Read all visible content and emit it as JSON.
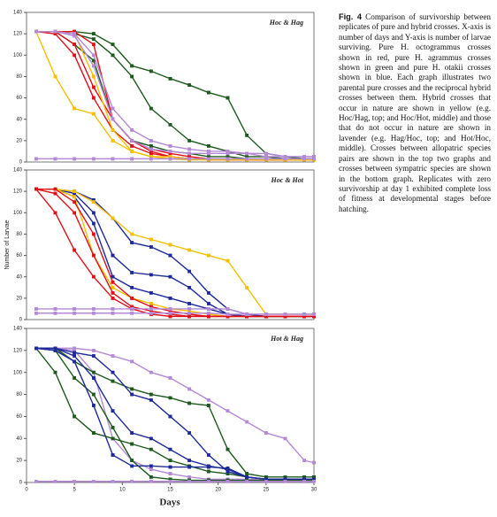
{
  "xlabel": "Days",
  "caption": {
    "label": "Fig. 4",
    "text": "Comparison of survivorship between replicates of pure and hybrid crosses. X-axis is number of days and Y-axis is number of larvae surviving. Pure H. octogrammus crosses shown in red, pure H. agrammus crosses shown in green and pure H. otakii crosses shown in blue. Each graph illustrates two parental pure crosses and the reciprocal hybrid crosses between them. Hybrid crosses that occur in nature are shown in yellow (e.g. Hoc/Hag, top; and Hoc/Hot, middle) and those that do not occur in nature are shown in lavender (e.g. Hag/Hoc, top; and Hot/Hoc, middle). Crosses between allopatric species pairs are shown in the top two graphs and crosses between sympatric species are shown in the bottom graph. Replicates with zero survivorship at day 1 exhibited complete loss of fitness at developmental stages before hatching."
  },
  "chart_data": [
    {
      "type": "line",
      "title": "Hoc & Hag",
      "xlim": [
        0,
        30
      ],
      "ylim": [
        0,
        140
      ],
      "yticks": [
        0,
        20,
        40,
        60,
        80,
        100,
        120,
        140
      ],
      "x": [
        1,
        3,
        5,
        7,
        9,
        11,
        13,
        15,
        17,
        19,
        21,
        23,
        25,
        27,
        29,
        30
      ],
      "series": [
        {
          "color": "#1e5a1e",
          "values": [
            122,
            122,
            122,
            120,
            110,
            90,
            85,
            78,
            72,
            65,
            60,
            25,
            8,
            5,
            3,
            3
          ]
        },
        {
          "color": "#1e5a1e",
          "values": [
            122,
            122,
            120,
            115,
            100,
            80,
            50,
            35,
            20,
            15,
            10,
            5,
            5,
            3,
            3,
            3
          ]
        },
        {
          "color": "#1e5a1e",
          "values": [
            122,
            122,
            110,
            95,
            40,
            20,
            15,
            10,
            8,
            5,
            5,
            3,
            3,
            3,
            2,
            2
          ]
        },
        {
          "color": "#e0101a",
          "values": [
            122,
            122,
            110,
            70,
            40,
            20,
            12,
            8,
            5,
            3,
            3,
            2,
            2,
            2,
            2,
            2
          ]
        },
        {
          "color": "#e0101a",
          "values": [
            122,
            120,
            100,
            60,
            30,
            15,
            8,
            5,
            3,
            3,
            2,
            2,
            2,
            2,
            2,
            2
          ]
        },
        {
          "color": "#e0101a",
          "values": [
            122,
            122,
            122,
            110,
            40,
            20,
            10,
            5,
            3,
            2,
            2,
            2,
            2,
            2,
            2,
            2
          ]
        },
        {
          "color": "#f5c000",
          "values": [
            122,
            80,
            50,
            45,
            20,
            10,
            5,
            3,
            2,
            2,
            2,
            2,
            2,
            2,
            2,
            2
          ]
        },
        {
          "color": "#f5c000",
          "values": [
            122,
            122,
            120,
            80,
            30,
            10,
            5,
            5,
            3,
            3,
            3,
            3,
            3,
            2,
            2,
            2
          ]
        },
        {
          "color": "#b48ad8",
          "values": [
            122,
            122,
            120,
            100,
            50,
            30,
            20,
            15,
            12,
            10,
            10,
            8,
            8,
            5,
            5,
            5
          ]
        },
        {
          "color": "#b48ad8",
          "values": [
            122,
            122,
            118,
            90,
            40,
            20,
            12,
            10,
            8,
            8,
            8,
            8,
            5,
            5,
            5,
            5
          ]
        },
        {
          "color": "#b48ad8",
          "values": [
            3,
            3,
            3,
            3,
            3,
            3,
            3,
            3,
            3,
            3,
            3,
            3,
            3,
            3,
            3,
            3
          ]
        }
      ]
    },
    {
      "type": "line",
      "title": "Hoc & Hot",
      "ylabel": "Number of Larvae",
      "xlim": [
        0,
        30
      ],
      "ylim": [
        0,
        140
      ],
      "yticks": [
        0,
        20,
        40,
        60,
        80,
        100,
        120,
        140
      ],
      "x": [
        1,
        3,
        5,
        7,
        9,
        11,
        13,
        15,
        17,
        19,
        21,
        23,
        25,
        27,
        29,
        30
      ],
      "series": [
        {
          "color": "#1e2a9a",
          "values": [
            122,
            122,
            120,
            112,
            95,
            72,
            68,
            60,
            45,
            25,
            10,
            5,
            3,
            3,
            3,
            3
          ]
        },
        {
          "color": "#1e2a9a",
          "values": [
            122,
            122,
            118,
            100,
            60,
            44,
            42,
            40,
            30,
            15,
            5,
            3,
            3,
            3,
            3,
            3
          ]
        },
        {
          "color": "#1e2a9a",
          "values": [
            122,
            122,
            115,
            90,
            40,
            30,
            25,
            20,
            15,
            10,
            5,
            3,
            3,
            3,
            3,
            3
          ]
        },
        {
          "color": "#f5c000",
          "values": [
            122,
            122,
            120,
            110,
            95,
            80,
            75,
            70,
            65,
            60,
            55,
            30,
            5,
            5,
            5,
            5
          ]
        },
        {
          "color": "#f5c000",
          "values": [
            122,
            122,
            115,
            60,
            30,
            20,
            15,
            10,
            8,
            5,
            3,
            3,
            3,
            3,
            3,
            3
          ]
        },
        {
          "color": "#e0101a",
          "values": [
            122,
            100,
            65,
            40,
            20,
            10,
            5,
            3,
            3,
            3,
            3,
            3,
            3,
            3,
            3,
            3
          ]
        },
        {
          "color": "#e0101a",
          "values": [
            122,
            118,
            100,
            60,
            25,
            12,
            8,
            5,
            3,
            3,
            3,
            3,
            3,
            3,
            3,
            3
          ]
        },
        {
          "color": "#e0101a",
          "values": [
            122,
            122,
            110,
            80,
            35,
            20,
            12,
            8,
            5,
            3,
            3,
            3,
            3,
            3,
            3,
            3
          ]
        },
        {
          "color": "#b48ad8",
          "values": [
            10,
            10,
            10,
            10,
            10,
            10,
            10,
            10,
            10,
            10,
            10,
            5,
            5,
            5,
            5,
            5
          ]
        },
        {
          "color": "#b48ad8",
          "values": [
            6,
            6,
            6,
            6,
            6,
            6,
            6,
            6,
            6,
            6,
            5,
            5,
            5,
            5,
            5,
            5
          ]
        }
      ]
    },
    {
      "type": "line",
      "title": "Hot & Hag",
      "xlim": [
        0,
        30
      ],
      "ylim": [
        0,
        140
      ],
      "yticks": [
        0,
        20,
        40,
        60,
        80,
        100,
        120,
        140
      ],
      "xticks": [
        0,
        5,
        10,
        15,
        20,
        25,
        30
      ],
      "x": [
        1,
        3,
        5,
        7,
        9,
        11,
        13,
        15,
        17,
        19,
        21,
        23,
        25,
        27,
        29,
        30
      ],
      "series": [
        {
          "color": "#b48ad8",
          "values": [
            122,
            122,
            122,
            120,
            115,
            110,
            100,
            95,
            85,
            75,
            65,
            55,
            45,
            40,
            20,
            18
          ]
        },
        {
          "color": "#b48ad8",
          "values": [
            122,
            122,
            120,
            100,
            40,
            20,
            12,
            8,
            5,
            3,
            3,
            3,
            3,
            3,
            3,
            3
          ]
        },
        {
          "color": "#1e5a1e",
          "values": [
            122,
            122,
            110,
            100,
            92,
            85,
            80,
            77,
            72,
            70,
            30,
            8,
            5,
            5,
            5,
            5
          ]
        },
        {
          "color": "#1e5a1e",
          "values": [
            122,
            100,
            60,
            45,
            40,
            35,
            30,
            20,
            15,
            10,
            8,
            5,
            3,
            3,
            3,
            3
          ]
        },
        {
          "color": "#1e5a1e",
          "values": [
            122,
            120,
            95,
            80,
            50,
            20,
            5,
            3,
            2,
            2,
            2,
            2,
            2,
            2,
            2,
            2
          ]
        },
        {
          "color": "#1e2a9a",
          "values": [
            122,
            122,
            118,
            115,
            100,
            80,
            75,
            60,
            45,
            25,
            10,
            5,
            3,
            3,
            3,
            3
          ]
        },
        {
          "color": "#1e2a9a",
          "values": [
            122,
            122,
            115,
            95,
            65,
            45,
            40,
            30,
            20,
            15,
            12,
            5,
            3,
            3,
            3,
            3
          ]
        },
        {
          "color": "#1e2a9a",
          "values": [
            122,
            120,
            110,
            70,
            25,
            15,
            15,
            14,
            14,
            14,
            13,
            5,
            3,
            3,
            3,
            3
          ]
        },
        {
          "color": "#b48ad8",
          "values": [
            1,
            1,
            1,
            1,
            1,
            1,
            1,
            1,
            1,
            1,
            1,
            1,
            1,
            1,
            1,
            1
          ]
        }
      ]
    }
  ]
}
